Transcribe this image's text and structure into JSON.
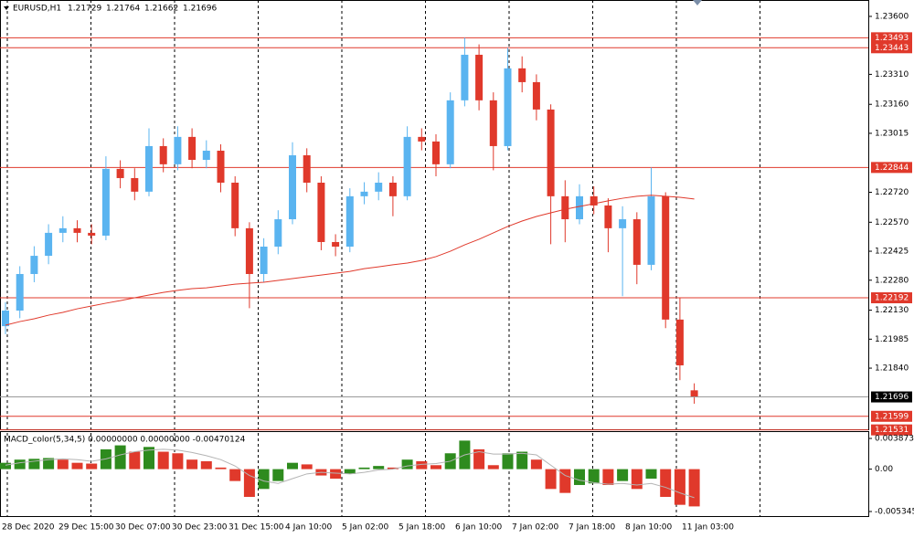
{
  "chart_data": {
    "type": "candlestick",
    "symbol": "EURUSD,H1",
    "up_color": "#5ab4f0",
    "down_color": "#e0392b",
    "open": [
      1.2205,
      1.22128,
      1.22311,
      1.22402,
      1.22517,
      1.2254,
      1.22517,
      1.22503,
      1.22837,
      1.22791,
      1.22723,
      1.22951,
      1.2286,
      1.22997,
      1.22882,
      1.22928,
      1.22768,
      1.2254,
      1.22311,
      1.22448,
      1.22585,
      1.22905,
      1.22768,
      1.22471,
      1.22448,
      1.227,
      1.22723,
      1.22768,
      1.227,
      1.22997,
      1.22974,
      1.2286,
      1.2318,
      1.23408,
      1.2318,
      1.22951,
      1.2334,
      1.23271,
      1.23134,
      1.227,
      1.22585,
      1.227,
      1.22654,
      1.2254,
      1.22585,
      1.22357,
      1.227,
      1.22083,
      1.21729
    ],
    "high": [
      1.2217,
      1.2235,
      1.2245,
      1.2256,
      1.226,
      1.2258,
      1.2256,
      1.229,
      1.2288,
      1.2284,
      1.2304,
      1.2299,
      1.2305,
      1.2304,
      1.2298,
      1.2296,
      1.228,
      1.2257,
      1.2249,
      1.2263,
      1.2297,
      1.2294,
      1.228,
      1.2251,
      1.2274,
      1.2277,
      1.2282,
      1.228,
      1.2305,
      1.2304,
      1.2301,
      1.2322,
      1.23493,
      1.2346,
      1.2322,
      1.23443,
      1.234,
      1.2331,
      1.2316,
      1.2278,
      1.2276,
      1.2275,
      1.2269,
      1.2265,
      1.2262,
      1.22844,
      1.2272,
      1.22192,
      1.21764
    ],
    "low": [
      1.2201,
      1.2209,
      1.2227,
      1.2236,
      1.2247,
      1.2247,
      1.2246,
      1.2248,
      1.2274,
      1.2268,
      1.227,
      1.2282,
      1.2283,
      1.2284,
      1.2284,
      1.2272,
      1.225,
      1.2214,
      1.2227,
      1.2241,
      1.2256,
      1.2272,
      1.2243,
      1.224,
      1.2242,
      1.2266,
      1.2268,
      1.226,
      1.2268,
      1.2293,
      1.228,
      1.2284,
      1.2315,
      1.2313,
      1.2283,
      1.2293,
      1.2322,
      1.2308,
      1.2246,
      1.2247,
      1.2256,
      1.2261,
      1.2242,
      1.222,
      1.2226,
      1.2233,
      1.2204,
      1.2178,
      1.21662
    ],
    "close": [
      1.22128,
      1.22311,
      1.22402,
      1.22517,
      1.2254,
      1.22517,
      1.22503,
      1.22837,
      1.22791,
      1.22723,
      1.22951,
      1.2286,
      1.22997,
      1.22882,
      1.22928,
      1.22768,
      1.2254,
      1.22311,
      1.22448,
      1.22585,
      1.22905,
      1.22768,
      1.22471,
      1.22448,
      1.227,
      1.22723,
      1.22768,
      1.227,
      1.22997,
      1.22974,
      1.2286,
      1.2318,
      1.23408,
      1.2318,
      1.22951,
      1.2334,
      1.23271,
      1.23134,
      1.227,
      1.22585,
      1.227,
      1.22654,
      1.2254,
      1.22585,
      1.22357,
      1.227,
      1.22083,
      1.21854,
      1.21696
    ],
    "ma": {
      "color": "#e0392b",
      "values": [
        1.22055,
        1.22073,
        1.22087,
        1.22105,
        1.22119,
        1.22137,
        1.22151,
        1.22165,
        1.22178,
        1.22192,
        1.22206,
        1.22219,
        1.22229,
        1.22238,
        1.22242,
        1.22251,
        1.2226,
        1.22265,
        1.2227,
        1.22279,
        1.22288,
        1.22297,
        1.22306,
        1.22315,
        1.22324,
        1.22338,
        1.22347,
        1.22357,
        1.22366,
        1.22379,
        1.22398,
        1.22425,
        1.22457,
        1.22485,
        1.22517,
        1.22549,
        1.22576,
        1.22599,
        1.22617,
        1.22635,
        1.22649,
        1.22663,
        1.22677,
        1.2269,
        1.227,
        1.22705,
        1.227,
        1.22695,
        1.22686
      ]
    },
    "ylim": [
      1.21534,
      1.23682
    ],
    "yticks": [
      {
        "value": 1.236,
        "label": "1.23600"
      },
      {
        "value": 1.2331,
        "label": "1.23310"
      },
      {
        "value": 1.2316,
        "label": "1.23160"
      },
      1.23015,
      {
        "value": 1.2272,
        "label": "1.22720"
      },
      {
        "value": 1.2257,
        "label": "1.22570"
      },
      1.22425,
      {
        "value": 1.2228,
        "label": "1.22280"
      },
      {
        "value": 1.2213,
        "label": "1.22130"
      },
      1.21985,
      {
        "value": 1.2184,
        "label": "1.21840"
      }
    ],
    "levels": [
      1.23493,
      1.23443,
      1.22844,
      1.22192,
      1.21599,
      1.21531
    ],
    "level_color": "#e0392b",
    "x_labels": [
      "28 Dec 2020",
      "29 Dec 15:00",
      "30 Dec 07:00",
      "30 Dec 23:00",
      "31 Dec 15:00",
      "4 Jan 10:00",
      "5 Jan 02:00",
      "5 Jan 18:00",
      "6 Jan 10:00",
      "7 Jan 02:00",
      "7 Jan 18:00",
      "8 Jan 10:00",
      "11 Jan 03:00"
    ],
    "macd": {
      "title": "MACD_color(5,34,5) 0.00000000 0.00000000 -0.00470124",
      "up_color": "#2e8b1e",
      "down_color": "#e0392b",
      "signal_color": "#b4b4b4",
      "values": [
        0.0008,
        0.0012,
        0.0013,
        0.0014,
        0.0012,
        0.0008,
        0.0007,
        0.0025,
        0.003,
        0.0022,
        0.0028,
        0.0022,
        0.002,
        0.0012,
        0.001,
        0.0002,
        -0.0015,
        -0.0035,
        -0.0025,
        -0.0015,
        0.0008,
        0.0006,
        -0.0008,
        -0.0012,
        -0.0006,
        0.0002,
        0.0004,
        0.0002,
        0.0012,
        0.001,
        0.0005,
        0.002,
        0.0036,
        0.0025,
        0.0005,
        0.002,
        0.0022,
        0.0012,
        -0.0025,
        -0.003,
        -0.002,
        -0.0018,
        -0.002,
        -0.0015,
        -0.0025,
        -0.0012,
        -0.0035,
        -0.0045,
        -0.0047
      ],
      "signal": [
        0.0005,
        0.0008,
        0.001,
        0.0012,
        0.0013,
        0.0012,
        0.001,
        0.0013,
        0.0018,
        0.0022,
        0.0024,
        0.0025,
        0.0024,
        0.0021,
        0.0017,
        0.0012,
        0.0004,
        -0.0008,
        -0.0015,
        -0.0018,
        -0.0012,
        -0.0006,
        -0.0004,
        -0.0005,
        -0.0006,
        -0.0004,
        -0.0001,
        0,
        0.0004,
        0.0006,
        0.0007,
        0.001,
        0.0018,
        0.0022,
        0.0019,
        0.0019,
        0.002,
        0.0018,
        0.0005,
        -0.0008,
        -0.0014,
        -0.0017,
        -0.0019,
        -0.0018,
        -0.002,
        -0.0018,
        -0.0023,
        -0.003,
        -0.0036
      ],
      "ylim": [
        -0.005921,
        0.004795
      ],
      "yticks": [
        0.0038732,
        {
          "value": 0,
          "label": "0.00"
        },
        -0.005345
      ]
    }
  }
}
